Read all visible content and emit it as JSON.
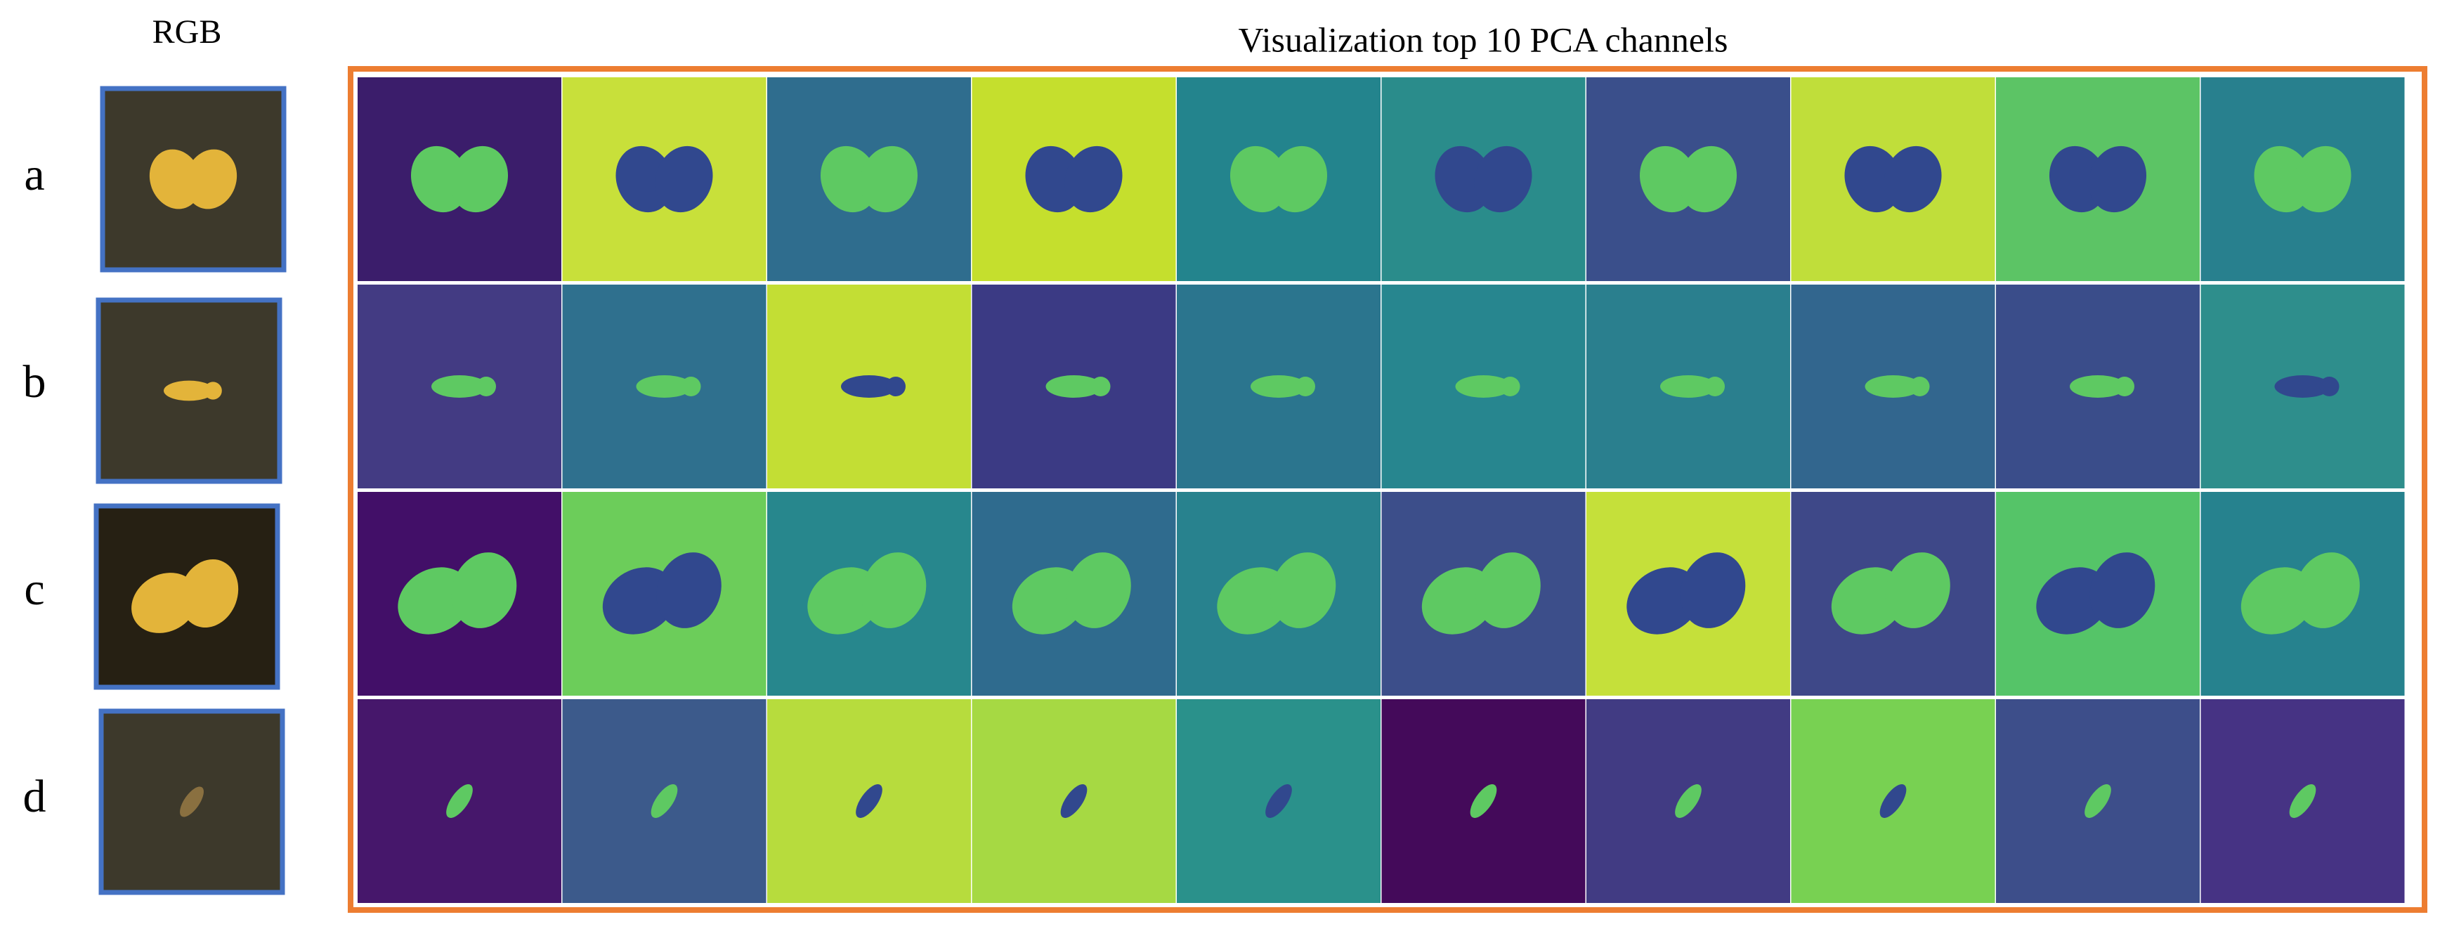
{
  "header": {
    "rgb_label": "RGB",
    "title": "Visualization top 10 PCA channels"
  },
  "rows": [
    {
      "label": "a"
    },
    {
      "label": "b"
    },
    {
      "label": "c"
    },
    {
      "label": "d"
    }
  ]
}
